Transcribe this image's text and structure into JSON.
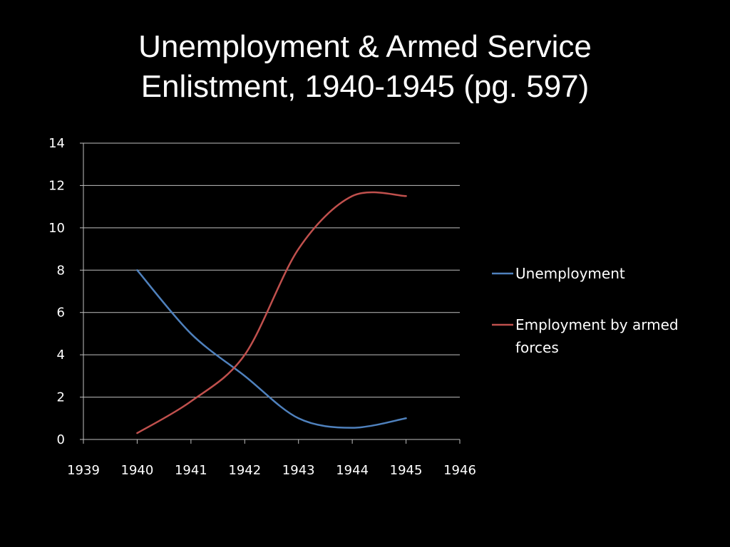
{
  "slide": {
    "title_line1": "Unemployment & Armed Service",
    "title_line2": "Enlistment, 1940-1945 (pg. 597)"
  },
  "chart_data": {
    "type": "line",
    "title": "",
    "xlabel": "",
    "ylabel": "",
    "xlim": [
      1939,
      1946
    ],
    "ylim": [
      0,
      14
    ],
    "x_ticks": [
      1939,
      1940,
      1941,
      1942,
      1943,
      1944,
      1945,
      1946
    ],
    "y_ticks": [
      0,
      2,
      4,
      6,
      8,
      10,
      12,
      14
    ],
    "grid": "horizontal",
    "legend_position": "right",
    "x": [
      1940,
      1941,
      1942,
      1943,
      1944,
      1945
    ],
    "series": [
      {
        "name": "Unemployment",
        "color": "#4f81bd",
        "values": [
          8,
          5,
          3,
          1,
          0.55,
          1
        ]
      },
      {
        "name": "Employment by armed forces",
        "name_lines": [
          "Employment by armed",
          "forces"
        ],
        "color": "#c0504d",
        "values": [
          0.3,
          1.8,
          4.0,
          9.0,
          11.5,
          11.5
        ]
      }
    ]
  }
}
